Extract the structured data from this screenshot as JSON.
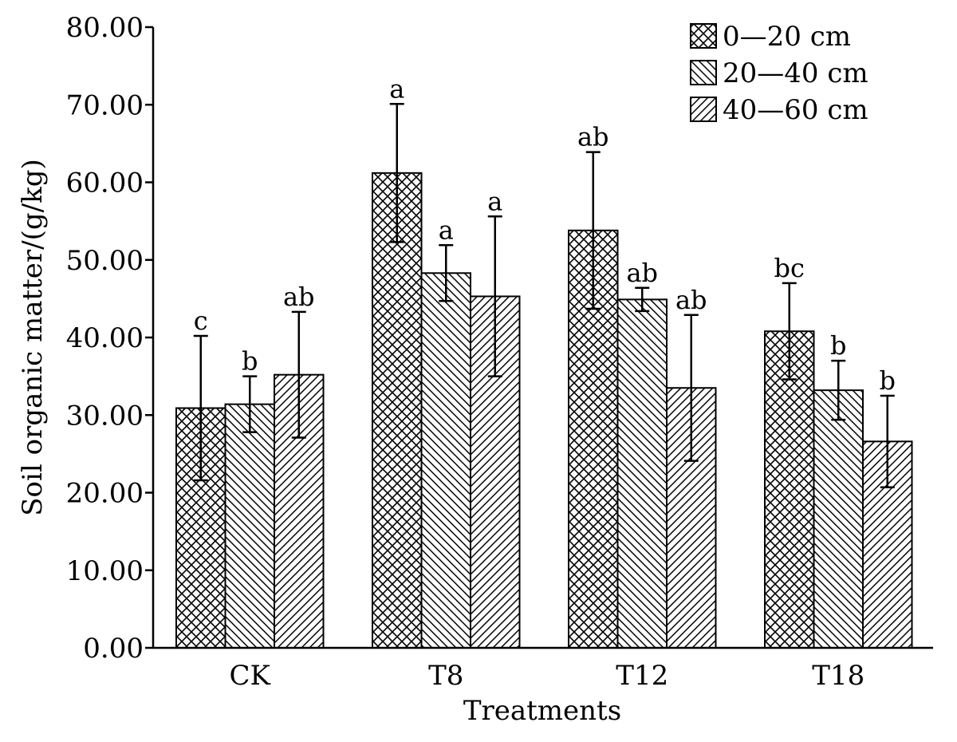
{
  "chart_data": {
    "type": "bar",
    "xlabel": "Treatments",
    "ylabel": "Soil organic matter/(g/kg)",
    "ylim": [
      0,
      80
    ],
    "yticks": [
      "0.00",
      "10.00",
      "20.00",
      "30.00",
      "40.00",
      "50.00",
      "60.00",
      "70.00",
      "80.00"
    ],
    "categories": [
      "CK",
      "T8",
      "T12",
      "T18"
    ],
    "legend_position": "top-right",
    "grid": false,
    "series": [
      {
        "name": "0—20 cm",
        "pattern": "crosshatch",
        "values": [
          30.9,
          61.2,
          53.8,
          40.8
        ],
        "errors": [
          9.3,
          8.9,
          10.1,
          6.2
        ],
        "labels": [
          "c",
          "a",
          "ab",
          "bc"
        ]
      },
      {
        "name": "20—40 cm",
        "pattern": "backslash",
        "values": [
          31.4,
          48.3,
          44.9,
          33.2
        ],
        "errors": [
          3.6,
          3.6,
          1.5,
          3.8
        ],
        "labels": [
          "b",
          "a",
          "ab",
          "b"
        ]
      },
      {
        "name": "40—60 cm",
        "pattern": "slash",
        "values": [
          35.2,
          45.3,
          33.5,
          26.6
        ],
        "errors": [
          8.1,
          10.3,
          9.4,
          5.9
        ],
        "labels": [
          "ab",
          "a",
          "ab",
          "b"
        ]
      }
    ]
  }
}
